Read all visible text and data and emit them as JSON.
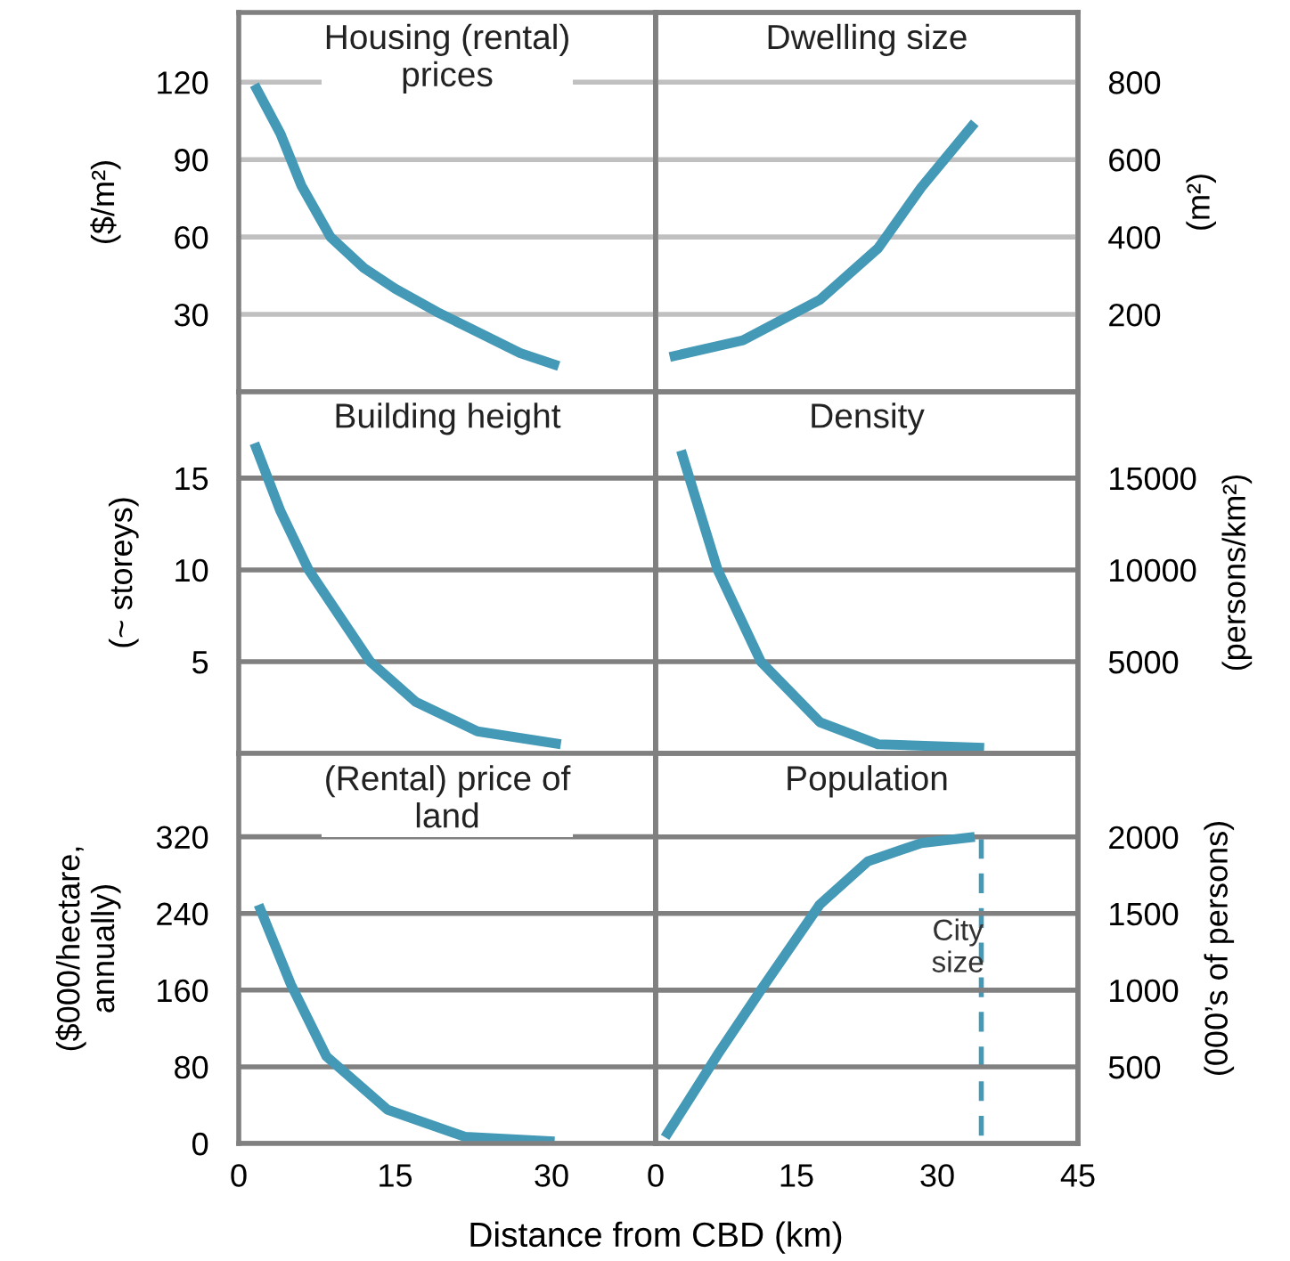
{
  "chart_data": [
    {
      "type": "line",
      "title": "Housing (rental)\nprices",
      "ylabel": "($/m²)",
      "xlim": [
        0,
        40
      ],
      "ylim": [
        0,
        147
      ],
      "yticks": [
        30,
        60,
        90,
        120
      ],
      "grid": "y",
      "tick_labels": "y",
      "series": [
        {
          "color": "#4499b6",
          "x": [
            1.5,
            4,
            6,
            8.8,
            12,
            15,
            19,
            22,
            27,
            30.7
          ],
          "values": [
            119,
            100,
            80,
            60,
            48,
            40,
            31,
            25,
            15,
            10
          ]
        }
      ]
    },
    {
      "type": "line",
      "title": "Dwelling size",
      "y2label": "(m²)",
      "xlim": [
        0,
        45
      ],
      "y2lim": [
        0,
        980
      ],
      "y2ticks": [
        200,
        400,
        600,
        800
      ],
      "grid": "y",
      "tick_labels": "y",
      "series": [
        {
          "color": "#4499b6",
          "axis": "y2",
          "x": [
            1.5,
            9.3,
            17.5,
            23.7,
            28.3,
            34
          ],
          "values": [
            90,
            133,
            238,
            371,
            528,
            695
          ]
        }
      ]
    },
    {
      "type": "line",
      "title": "Building height",
      "ylabel": "(~ storeys)",
      "xlim": [
        0,
        40
      ],
      "ylim": [
        0,
        19.7
      ],
      "yticks": [
        5,
        10,
        15
      ],
      "grid": "y",
      "tick_labels": "y",
      "series": [
        {
          "color": "#4499b6",
          "x": [
            1.5,
            4,
            6.7,
            12.6,
            17,
            22.9,
            30.9
          ],
          "values": [
            16.9,
            13.2,
            10,
            5,
            2.8,
            1.2,
            0.5
          ]
        }
      ]
    },
    {
      "type": "line",
      "title": "Density",
      "y2label": "(persons/km²)",
      "xlim": [
        0,
        45
      ],
      "y2lim": [
        0,
        19700
      ],
      "y2ticks": [
        5000,
        10000,
        15000
      ],
      "grid": "y",
      "tick_labels": "y",
      "series": [
        {
          "color": "#4499b6",
          "axis": "y2",
          "x": [
            2.7,
            6.6,
            11.2,
            17.5,
            23.7,
            35
          ],
          "values": [
            16500,
            10000,
            5000,
            1700,
            500,
            300
          ]
        }
      ]
    },
    {
      "type": "line",
      "title": "(Rental) price of\nland",
      "ylabel": "($000/hectare,\nannually)",
      "xlabel": "Distance from CBD (km)",
      "xlim": [
        0,
        40
      ],
      "xticks": [
        0,
        15,
        30
      ],
      "ylim": [
        0,
        407
      ],
      "yticks": [
        0,
        80,
        160,
        240,
        320
      ],
      "grid": "y",
      "series": [
        {
          "color": "#4499b6",
          "x": [
            1.9,
            5,
            8.4,
            14.3,
            21.7,
            30.3
          ],
          "values": [
            249,
            166,
            91,
            35,
            7,
            2
          ]
        }
      ]
    },
    {
      "type": "line",
      "title": "Population",
      "y2label": "(000’s of persons)",
      "xlim": [
        0,
        45
      ],
      "xticks": [
        0,
        15,
        30,
        45
      ],
      "y2lim": [
        0,
        2545
      ],
      "y2ticks": [
        500,
        1000,
        1500,
        2000
      ],
      "grid": "y",
      "ref_lines": [
        {
          "axis": "x",
          "value": 34.7,
          "label": "City size",
          "color": "#4499b6",
          "line_style": "dashed"
        }
      ],
      "series": [
        {
          "color": "#4499b6",
          "axis": "y2",
          "x": [
            1,
            6.6,
            11.2,
            17.5,
            22.6,
            28.3,
            34
          ],
          "values": [
            40,
            580,
            1000,
            1560,
            1840,
            1960,
            2000
          ]
        }
      ]
    }
  ]
}
